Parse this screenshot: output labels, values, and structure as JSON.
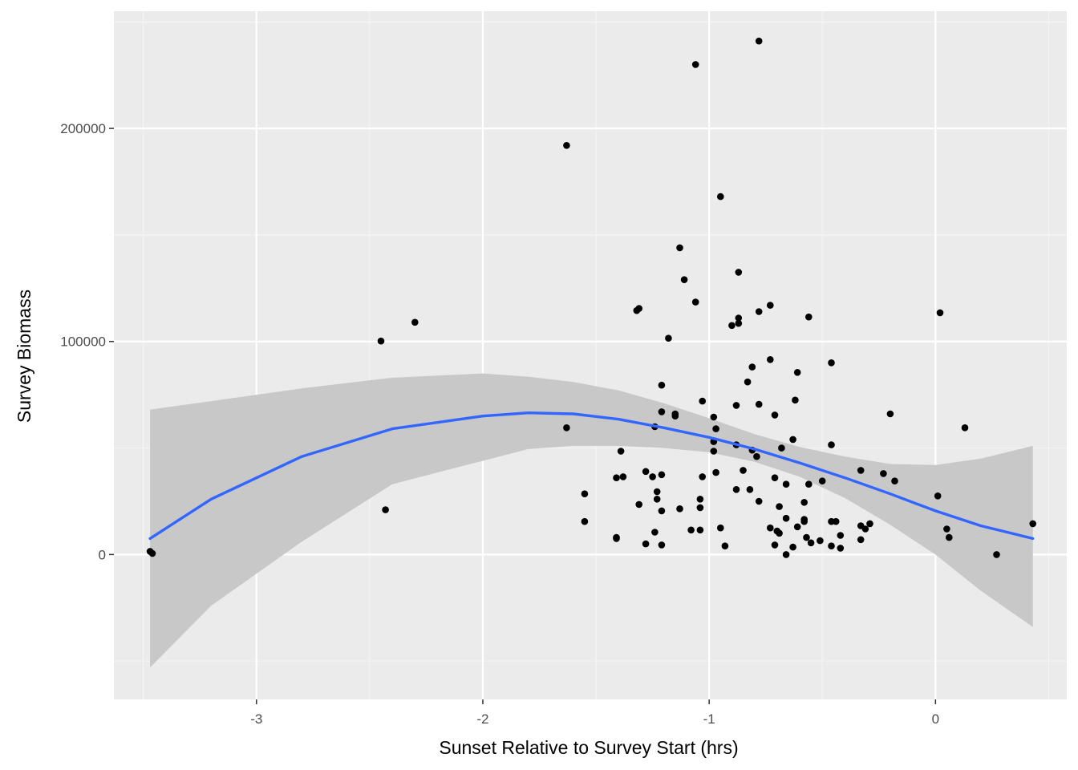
{
  "chart_data": {
    "type": "scatter",
    "title": "",
    "xlabel": "Sunset Relative to Survey Start (hrs)",
    "ylabel": "Survey Biomass",
    "xlim": [
      -3.63,
      0.58
    ],
    "ylim": [
      -68000,
      255000
    ],
    "x_ticks": [
      -3,
      -2,
      -1,
      0
    ],
    "x_tick_labels": [
      "-3",
      "-2",
      "-1",
      "0"
    ],
    "y_ticks": [
      0,
      100000,
      200000
    ],
    "y_tick_labels": [
      "0",
      "100000",
      "200000"
    ],
    "grid": true,
    "legend": "none",
    "colors": {
      "panel": "#ebebeb",
      "grid_major": "#ffffff",
      "grid_minor": "#f5f5f5",
      "points": "#000000",
      "smooth_line": "#3366ff",
      "ribbon": "#c8c8c8"
    },
    "series": [
      {
        "kind": "points",
        "points": [
          [
            -3.47,
            1500
          ],
          [
            -3.46,
            500
          ],
          [
            -2.45,
            100200
          ],
          [
            -2.43,
            21000
          ],
          [
            -2.3,
            109000
          ],
          [
            -1.63,
            192000
          ],
          [
            -1.63,
            59500
          ],
          [
            -1.55,
            28500
          ],
          [
            -1.55,
            15500
          ],
          [
            -1.41,
            36000
          ],
          [
            -1.41,
            8000
          ],
          [
            -1.41,
            7500
          ],
          [
            -1.38,
            36500
          ],
          [
            -1.39,
            48500
          ],
          [
            -1.32,
            114500
          ],
          [
            -1.31,
            115500
          ],
          [
            -1.31,
            23500
          ],
          [
            -1.28,
            39000
          ],
          [
            -1.28,
            5000
          ],
          [
            -1.25,
            36500
          ],
          [
            -1.24,
            60000
          ],
          [
            -1.24,
            10500
          ],
          [
            -1.23,
            29500
          ],
          [
            -1.23,
            26000
          ],
          [
            -1.21,
            79500
          ],
          [
            -1.21,
            67000
          ],
          [
            -1.21,
            37500
          ],
          [
            -1.21,
            20500
          ],
          [
            -1.21,
            4500
          ],
          [
            -1.18,
            101500
          ],
          [
            -1.15,
            66000
          ],
          [
            -1.15,
            65000
          ],
          [
            -1.13,
            144000
          ],
          [
            -1.13,
            21500
          ],
          [
            -1.11,
            129000
          ],
          [
            -1.08,
            11500
          ],
          [
            -1.06,
            230000
          ],
          [
            -1.06,
            118500
          ],
          [
            -1.04,
            26000
          ],
          [
            -1.04,
            22000
          ],
          [
            -1.04,
            11500
          ],
          [
            -1.03,
            72000
          ],
          [
            -1.03,
            36500
          ],
          [
            -0.98,
            64500
          ],
          [
            -0.98,
            53000
          ],
          [
            -0.98,
            48500
          ],
          [
            -0.97,
            59000
          ],
          [
            -0.97,
            38500
          ],
          [
            -0.95,
            168000
          ],
          [
            -0.95,
            12500
          ],
          [
            -0.93,
            4000
          ],
          [
            -0.9,
            107500
          ],
          [
            -0.88,
            70000
          ],
          [
            -0.88,
            51500
          ],
          [
            -0.88,
            30500
          ],
          [
            -0.87,
            132500
          ],
          [
            -0.87,
            111000
          ],
          [
            -0.87,
            108500
          ],
          [
            -0.85,
            39500
          ],
          [
            -0.83,
            81000
          ],
          [
            -0.82,
            30500
          ],
          [
            -0.81,
            88000
          ],
          [
            -0.81,
            49000
          ],
          [
            -0.78,
            241000
          ],
          [
            -0.78,
            114000
          ],
          [
            -0.78,
            70500
          ],
          [
            -0.79,
            46000
          ],
          [
            -0.78,
            25000
          ],
          [
            -0.73,
            117000
          ],
          [
            -0.73,
            91500
          ],
          [
            -0.73,
            12500
          ],
          [
            -0.71,
            65500
          ],
          [
            -0.71,
            36000
          ],
          [
            -0.71,
            4500
          ],
          [
            -0.7,
            11000
          ],
          [
            -0.69,
            22500
          ],
          [
            -0.69,
            10000
          ],
          [
            -0.68,
            50000
          ],
          [
            -0.66,
            33000
          ],
          [
            -0.66,
            17000
          ],
          [
            -0.66,
            0
          ],
          [
            -0.63,
            54000
          ],
          [
            -0.63,
            3500
          ],
          [
            -0.62,
            72500
          ],
          [
            -0.61,
            85500
          ],
          [
            -0.61,
            13000
          ],
          [
            -0.58,
            24500
          ],
          [
            -0.58,
            16500
          ],
          [
            -0.58,
            15500
          ],
          [
            -0.57,
            8000
          ],
          [
            -0.56,
            111500
          ],
          [
            -0.56,
            33000
          ],
          [
            -0.55,
            5500
          ],
          [
            -0.51,
            6500
          ],
          [
            -0.5,
            34500
          ],
          [
            -0.46,
            90000
          ],
          [
            -0.46,
            51500
          ],
          [
            -0.46,
            15500
          ],
          [
            -0.46,
            4000
          ],
          [
            -0.44,
            15500
          ],
          [
            -0.42,
            9000
          ],
          [
            -0.42,
            3000
          ],
          [
            -0.33,
            39500
          ],
          [
            -0.33,
            13500
          ],
          [
            -0.33,
            7000
          ],
          [
            -0.31,
            12000
          ],
          [
            -0.29,
            14500
          ],
          [
            -0.23,
            38000
          ],
          [
            -0.2,
            66000
          ],
          [
            -0.18,
            34500
          ],
          [
            0.02,
            113500
          ],
          [
            0.01,
            27500
          ],
          [
            0.05,
            12000
          ],
          [
            0.06,
            8000
          ],
          [
            0.13,
            59500
          ],
          [
            0.27,
            0
          ],
          [
            0.43,
            14500
          ]
        ]
      },
      {
        "kind": "smooth",
        "method": "loess",
        "x": [
          -3.47,
          -3.2,
          -2.8,
          -2.4,
          -2.0,
          -1.8,
          -1.6,
          -1.4,
          -1.2,
          -1.0,
          -0.8,
          -0.6,
          -0.4,
          -0.2,
          0.0,
          0.2,
          0.43
        ],
        "fit": [
          7500,
          26000,
          46000,
          59000,
          65000,
          66500,
          66000,
          63500,
          59500,
          55000,
          49500,
          43000,
          36000,
          28500,
          20500,
          13500,
          7500
        ],
        "lower": [
          -53000,
          -24000,
          6000,
          33000,
          44000,
          49500,
          51000,
          51000,
          50000,
          48000,
          43500,
          36500,
          26500,
          14000,
          0,
          -17000,
          -34000
        ],
        "upper": [
          68000,
          72000,
          78000,
          83000,
          85000,
          83500,
          81000,
          77000,
          71000,
          64000,
          56500,
          50500,
          46000,
          42500,
          42000,
          45000,
          51000
        ]
      }
    ]
  }
}
